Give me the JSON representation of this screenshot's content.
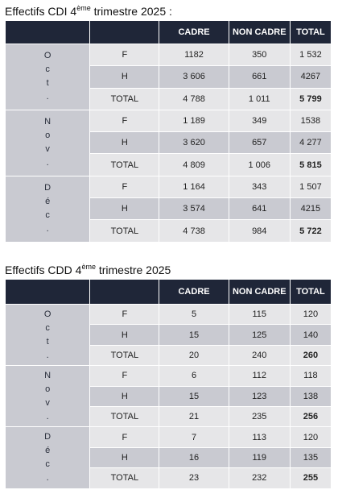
{
  "cdi": {
    "title_prefix": "Effectifs CDI 4",
    "title_sup": "ème",
    "title_suffix": " trimestre 2025 :",
    "headers": [
      "",
      "",
      "CADRE",
      "NON CADRE",
      "TOTAL"
    ],
    "months": [
      {
        "label_chars": [
          "O",
          "c",
          "t",
          "."
        ],
        "rows": [
          {
            "type": "F",
            "cadre": "1182",
            "non_cadre": "350",
            "total": "1 532"
          },
          {
            "type": "H",
            "cadre": "3 606",
            "non_cadre": "661",
            "total": "4267"
          },
          {
            "type": "TOTAL",
            "cadre": "4 788",
            "non_cadre": "1 011",
            "total": "5 799"
          }
        ]
      },
      {
        "label_chars": [
          "N",
          "o",
          "v",
          "."
        ],
        "rows": [
          {
            "type": "F",
            "cadre": "1 189",
            "non_cadre": "349",
            "total": "1538"
          },
          {
            "type": "H",
            "cadre": "3 620",
            "non_cadre": "657",
            "total": "4 277"
          },
          {
            "type": "TOTAL",
            "cadre": "4 809",
            "non_cadre": "1 006",
            "total": "5 815"
          }
        ]
      },
      {
        "label_chars": [
          "D",
          "é",
          "c",
          "."
        ],
        "rows": [
          {
            "type": "F",
            "cadre": "1 164",
            "non_cadre": "343",
            "total": "1 507"
          },
          {
            "type": "H",
            "cadre": "3 574",
            "non_cadre": "641",
            "total": "4215"
          },
          {
            "type": "TOTAL",
            "cadre": "4 738",
            "non_cadre": "984",
            "total": "5 722"
          }
        ]
      }
    ]
  },
  "cdd": {
    "title_prefix": "Effectifs CDD 4",
    "title_sup": "ème",
    "title_suffix": " trimestre 2025",
    "headers": [
      "",
      "",
      "CADRE",
      "NON CADRE",
      "TOTAL"
    ],
    "months": [
      {
        "label_chars": [
          "O",
          "c",
          "t",
          "."
        ],
        "rows": [
          {
            "type": "F",
            "cadre": "5",
            "non_cadre": "115",
            "total": "120"
          },
          {
            "type": "H",
            "cadre": "15",
            "non_cadre": "125",
            "total": "140"
          },
          {
            "type": "TOTAL",
            "cadre": "20",
            "non_cadre": "240",
            "total": "260"
          }
        ]
      },
      {
        "label_chars": [
          "N",
          "o",
          "v",
          "."
        ],
        "rows": [
          {
            "type": "F",
            "cadre": "6",
            "non_cadre": "112",
            "total": "118"
          },
          {
            "type": "H",
            "cadre": "15",
            "non_cadre": "123",
            "total": "138"
          },
          {
            "type": "TOTAL",
            "cadre": "21",
            "non_cadre": "235",
            "total": "256"
          }
        ]
      },
      {
        "label_chars": [
          "D",
          "é",
          "c",
          "."
        ],
        "rows": [
          {
            "type": "F",
            "cadre": "7",
            "non_cadre": "113",
            "total": "120"
          },
          {
            "type": "H",
            "cadre": "16",
            "non_cadre": "119",
            "total": "135"
          },
          {
            "type": "TOTAL",
            "cadre": "23",
            "non_cadre": "232",
            "total": "255"
          }
        ]
      }
    ]
  }
}
